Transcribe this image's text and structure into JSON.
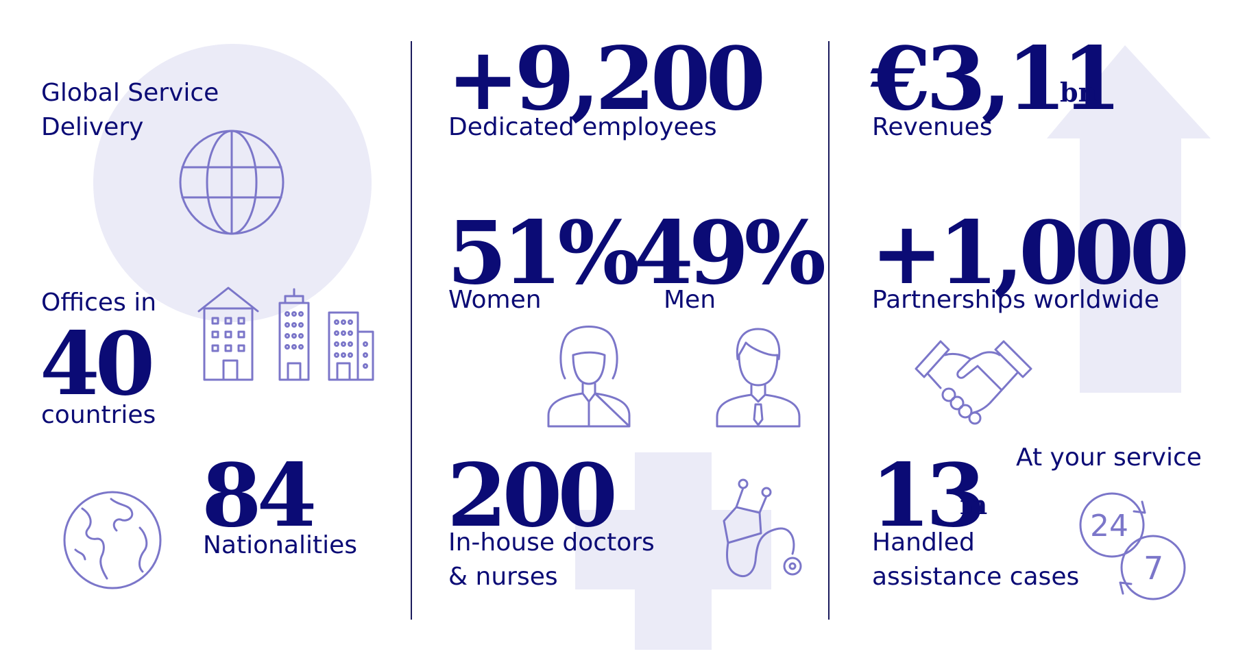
{
  "left": {
    "global_service_line1": "Global Service",
    "global_service_line2": "Delivery",
    "offices_prefix": "Offices in",
    "offices_value": "40",
    "offices_suffix": "countries",
    "nationalities_value": "84",
    "nationalities_label": "Nationalities"
  },
  "middle": {
    "employees_value": "+9,200",
    "employees_label": "Dedicated employees",
    "women_value": "51%",
    "women_label": "Women",
    "men_value": "49%",
    "men_label": "Men",
    "doctors_value": "200",
    "doctors_label_line1": "In-house doctors",
    "doctors_label_line2": "& nurses"
  },
  "right": {
    "revenue_value": "€3,11",
    "revenue_unit": "bn",
    "revenue_label": "Revenues",
    "partnerships_value": "+1,000",
    "partnerships_label": "Partnerships worldwide",
    "cases_value": "13",
    "cases_unit": "m",
    "cases_label_line1": "Handled",
    "cases_label_line2": "assistance cases",
    "service_label": "At your service",
    "clock_hours": "24",
    "clock_days": "7"
  },
  "colors": {
    "navy": "#0b0b75",
    "icon_stroke": "#7b76c9",
    "pale_shape": "#ebebf7",
    "divider": "#1a1a5c"
  },
  "icons": [
    "globe-icon",
    "buildings-icon",
    "earth-icon",
    "woman-icon",
    "man-icon",
    "stethoscope-icon",
    "handshake-icon",
    "clock-24-7-icon"
  ]
}
